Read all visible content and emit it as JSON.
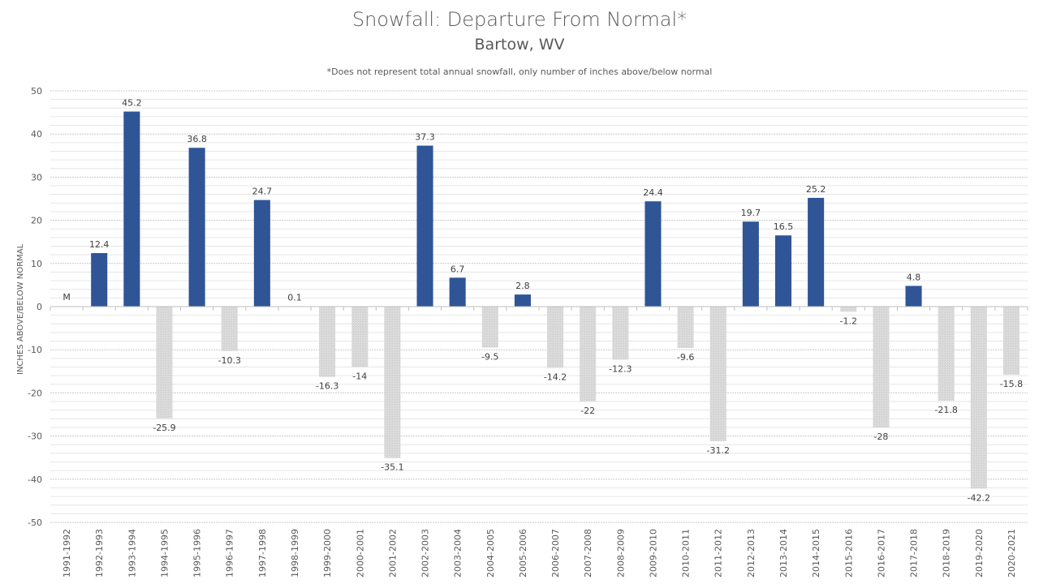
{
  "chart_data": {
    "type": "bar",
    "title": "Snowfall: Departure From Normal*",
    "subtitle": "Bartow, WV",
    "note": "*Does not represent  total annual snowfall, only number of inches above/below  normal",
    "xlabel": "",
    "ylabel": "INCHES ABOVE/BELOW NORMAL",
    "ylim": [
      -50,
      50
    ],
    "yticks": [
      50,
      40,
      30,
      20,
      10,
      0,
      -10,
      -20,
      -30,
      -40,
      -50
    ],
    "grid": true,
    "colors": {
      "positive": "#2F5597",
      "negative": "#D9D9D9",
      "text": "#595959"
    },
    "categories": [
      "1991-1992",
      "1992-1993",
      "1993-1994",
      "1994-1995",
      "1995-1996",
      "1996-1997",
      "1997-1998",
      "1998-1999",
      "1999-2000",
      "2000-2001",
      "2001-2002",
      "2002-2003",
      "2003-2004",
      "2004-2005",
      "2005-2006",
      "2006-2007",
      "2007-2008",
      "2008-2009",
      "2009-2010",
      "2010-2011",
      "2011-2012",
      "2012-2013",
      "2013-2014",
      "2014-2015",
      "2015-2016",
      "2016-2017",
      "2017-2018",
      "2018-2019",
      "2019-2020",
      "2020-2021"
    ],
    "values": [
      null,
      12.4,
      45.2,
      -25.9,
      36.8,
      -10.3,
      24.7,
      0.1,
      -16.3,
      -14,
      -35.1,
      37.3,
      6.7,
      -9.5,
      2.8,
      -14.2,
      -22,
      -12.3,
      24.4,
      -9.6,
      -31.2,
      19.7,
      16.5,
      25.2,
      -1.2,
      -28,
      4.8,
      -21.8,
      -42.2,
      -15.8
    ],
    "labels": [
      "M",
      "12.4",
      "45.2",
      "-25.9",
      "36.8",
      "-10.3",
      "24.7",
      "0.1",
      "-16.3",
      "-14",
      "-35.1",
      "37.3",
      "6.7",
      "-9.5",
      "2.8",
      "-14.2",
      "-22",
      "-12.3",
      "24.4",
      "-9.6",
      "-31.2",
      "19.7",
      "16.5",
      "25.2",
      "-1.2",
      "-28",
      "4.8",
      "-21.8",
      "-42.2",
      "-15.8"
    ]
  }
}
